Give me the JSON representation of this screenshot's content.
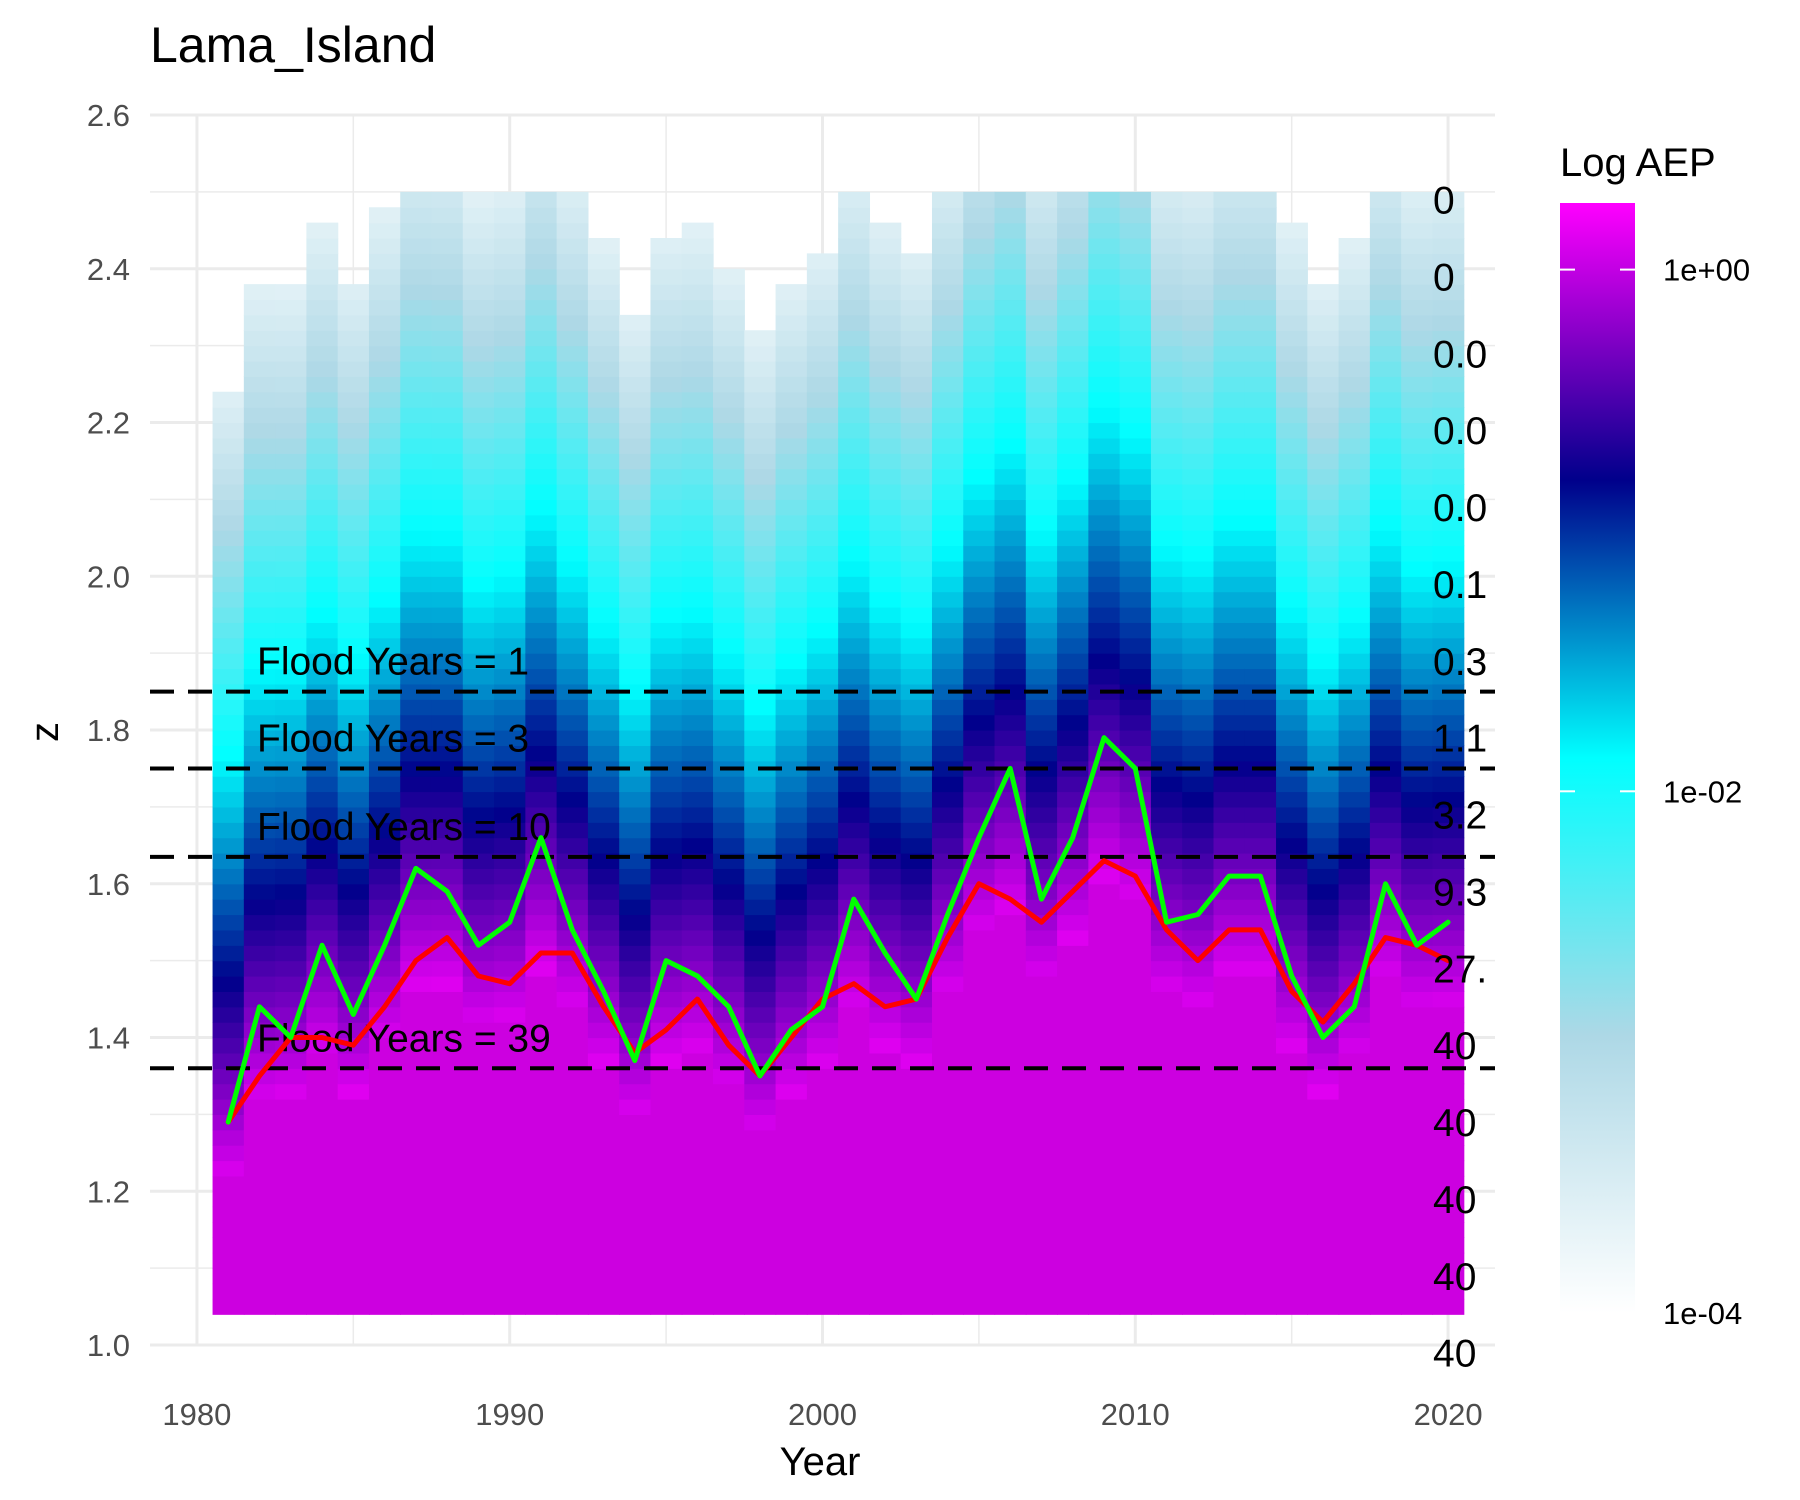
{
  "chart_data": {
    "type": "heatmap",
    "title": "Lama_Island",
    "xlabel": "Year",
    "ylabel": "z",
    "xlim": [
      1978.5,
      2021.5
    ],
    "ylim": [
      1.0,
      2.6
    ],
    "x_ticks": [
      "1980",
      "1990",
      "2000",
      "2010",
      "2020"
    ],
    "y_ticks": [
      "1.0",
      "1.2",
      "1.4",
      "1.6",
      "1.8",
      "2.0",
      "2.2",
      "2.4",
      "2.6"
    ],
    "grid": true,
    "legend": {
      "title": "Log AEP",
      "placement": "right",
      "scale": "log",
      "ticks": [
        "1e+00",
        "1e-02",
        "1e-04"
      ],
      "colors": [
        "#ffffff",
        "#add8e6",
        "#00ffff",
        "#00008b",
        "#ff00ff"
      ]
    },
    "years": [
      1981,
      1982,
      1983,
      1984,
      1985,
      1986,
      1987,
      1988,
      1989,
      1990,
      1991,
      1992,
      1993,
      1994,
      1995,
      1996,
      1997,
      1998,
      1999,
      2000,
      2001,
      2002,
      2003,
      2004,
      2005,
      2006,
      2007,
      2008,
      2009,
      2010,
      2011,
      2012,
      2013,
      2014,
      2015,
      2016,
      2017,
      2018,
      2019,
      2020
    ],
    "series": [
      {
        "name": "red",
        "color": "#ff0000",
        "values": [
          1.29,
          1.35,
          1.4,
          1.4,
          1.39,
          1.44,
          1.5,
          1.53,
          1.48,
          1.47,
          1.51,
          1.51,
          1.44,
          1.38,
          1.41,
          1.45,
          1.39,
          1.35,
          1.4,
          1.45,
          1.47,
          1.44,
          1.45,
          1.53,
          1.6,
          1.58,
          1.55,
          1.59,
          1.63,
          1.61,
          1.54,
          1.5,
          1.54,
          1.54,
          1.46,
          1.42,
          1.47,
          1.53,
          1.52,
          1.5
        ]
      },
      {
        "name": "green",
        "color": "#00ff00",
        "values": [
          1.29,
          1.44,
          1.4,
          1.52,
          1.43,
          1.52,
          1.62,
          1.59,
          1.52,
          1.55,
          1.66,
          1.54,
          1.46,
          1.37,
          1.5,
          1.48,
          1.44,
          1.35,
          1.41,
          1.44,
          1.58,
          1.51,
          1.45,
          1.56,
          1.66,
          1.75,
          1.58,
          1.66,
          1.79,
          1.75,
          1.55,
          1.56,
          1.61,
          1.61,
          1.48,
          1.4,
          1.44,
          1.6,
          1.52,
          1.55
        ]
      }
    ],
    "flood_levels": [
      {
        "z": 1.85,
        "label": "Flood Years = 1"
      },
      {
        "z": 1.75,
        "label": "Flood Years = 3"
      },
      {
        "z": 1.635,
        "label": "Flood Years = 10"
      },
      {
        "z": 1.36,
        "label": "Flood Years = 39"
      }
    ],
    "count_labels": [
      {
        "z": 2.49,
        "label": "0"
      },
      {
        "z": 2.39,
        "label": "0"
      },
      {
        "z": 2.29,
        "label": "0.0"
      },
      {
        "z": 2.19,
        "label": "0.0"
      },
      {
        "z": 2.09,
        "label": "0.0"
      },
      {
        "z": 1.99,
        "label": "0.1"
      },
      {
        "z": 1.89,
        "label": "0.3"
      },
      {
        "z": 1.79,
        "label": "1.1"
      },
      {
        "z": 1.69,
        "label": "3.2"
      },
      {
        "z": 1.59,
        "label": "9.3"
      },
      {
        "z": 1.49,
        "label": "27."
      },
      {
        "z": 1.39,
        "label": "40"
      },
      {
        "z": 1.29,
        "label": "40"
      },
      {
        "z": 1.19,
        "label": "40"
      },
      {
        "z": 1.09,
        "label": "40"
      },
      {
        "z": 0.99,
        "label": "40"
      }
    ]
  }
}
